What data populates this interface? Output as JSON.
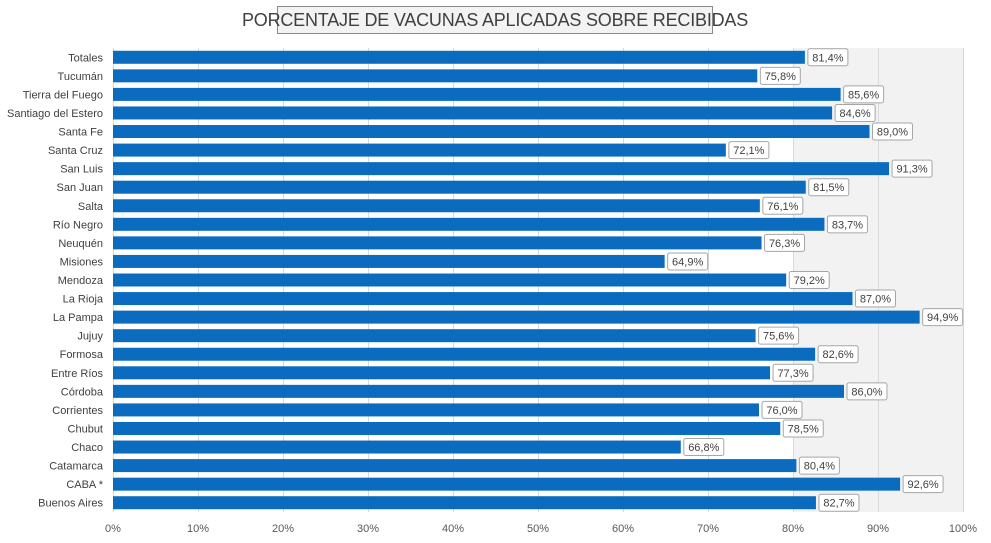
{
  "chart_data": {
    "type": "bar",
    "orientation": "horizontal",
    "title": "PORCENTAJE DE VACUNAS APLICADAS SOBRE RECIBIDAS",
    "categories": [
      "Totales",
      "Tucumán",
      "Tierra del Fuego",
      "Santiago del Estero",
      "Santa Fe",
      "Santa Cruz",
      "San Luis",
      "San Juan",
      "Salta",
      "Río Negro",
      "Neuquén",
      "Misiones",
      "Mendoza",
      "La Rioja",
      "La Pampa",
      "Jujuy",
      "Formosa",
      "Entre Ríos",
      "Córdoba",
      "Corrientes",
      "Chubut",
      "Chaco",
      "Catamarca",
      "CABA *",
      "Buenos Aires"
    ],
    "values": [
      81.4,
      75.8,
      85.6,
      84.6,
      89.0,
      72.1,
      91.3,
      81.5,
      76.1,
      83.7,
      76.3,
      64.9,
      79.2,
      87.0,
      94.9,
      75.6,
      82.6,
      77.3,
      86.0,
      76.0,
      78.5,
      66.8,
      80.4,
      92.6,
      82.7
    ],
    "data_labels": [
      "81,4%",
      "75,8%",
      "85,6%",
      "84,6%",
      "89,0%",
      "72,1%",
      "91,3%",
      "81,5%",
      "76,1%",
      "83,7%",
      "76,3%",
      "64,9%",
      "79,2%",
      "87,0%",
      "94,9%",
      "75,6%",
      "82,6%",
      "77,3%",
      "86,0%",
      "76,0%",
      "78,5%",
      "66,8%",
      "80,4%",
      "92,6%",
      "82,7%"
    ],
    "xlim": [
      0,
      100
    ],
    "x_ticks": [
      0,
      10,
      20,
      30,
      40,
      50,
      60,
      70,
      80,
      90,
      100
    ],
    "x_tick_labels": [
      "0%",
      "10%",
      "20%",
      "30%",
      "40%",
      "50%",
      "60%",
      "70%",
      "80%",
      "90%",
      "100%"
    ],
    "grid": true,
    "shaded_band": [
      80,
      100
    ],
    "legend": "none",
    "colors": {
      "bar": "#0b6cbf",
      "band": "#f2f2f2",
      "grid": "#d9d9d9",
      "label_border": "#a6a6a6"
    }
  }
}
